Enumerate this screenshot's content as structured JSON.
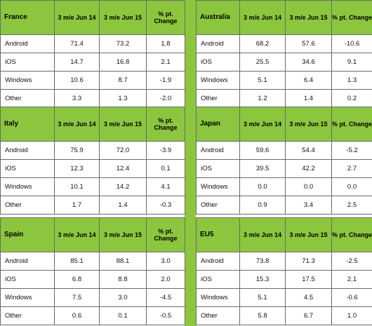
{
  "columns": [
    "3 m/e Jun 14",
    "3 m/e Jun 15",
    "% pt. Change"
  ],
  "regions": [
    {
      "name": "France",
      "rows": [
        {
          "os": "Android",
          "jun14": "71.4",
          "jun15": "73.2",
          "change": "1.8"
        },
        {
          "os": "iOS",
          "jun14": "14.7",
          "jun15": "16.8",
          "change": "2.1"
        },
        {
          "os": "Windows",
          "jun14": "10.6",
          "jun15": "8.7",
          "change": "-1.9"
        },
        {
          "os": "Other",
          "jun14": "3.3",
          "jun15": "1.3",
          "change": "-2.0"
        }
      ]
    },
    {
      "name": "Australia",
      "rows": [
        {
          "os": "Android",
          "jun14": "68.2",
          "jun15": "57.6",
          "change": "-10.6"
        },
        {
          "os": "iOS",
          "jun14": "25.5",
          "jun15": "34.6",
          "change": "9.1"
        },
        {
          "os": "Windows",
          "jun14": "5.1",
          "jun15": "6.4",
          "change": "1.3"
        },
        {
          "os": "Other",
          "jun14": "1.2",
          "jun15": "1.4",
          "change": "0.2"
        }
      ]
    },
    {
      "name": "Italy",
      "rows": [
        {
          "os": "Android",
          "jun14": "75.9",
          "jun15": "72.0",
          "change": "-3.9"
        },
        {
          "os": "iOS",
          "jun14": "12.3",
          "jun15": "12.4",
          "change": "0.1"
        },
        {
          "os": "Windows",
          "jun14": "10.1",
          "jun15": "14.2",
          "change": "4.1"
        },
        {
          "os": "Other",
          "jun14": "1.7",
          "jun15": "1.4",
          "change": "-0.3"
        }
      ]
    },
    {
      "name": "Japan",
      "rows": [
        {
          "os": "Android",
          "jun14": "59.6",
          "jun15": "54.4",
          "change": "-5.2"
        },
        {
          "os": "iOS",
          "jun14": "39.5",
          "jun15": "42.2",
          "change": "2.7"
        },
        {
          "os": "Windows",
          "jun14": "0.0",
          "jun15": "0.0",
          "change": "0.0"
        },
        {
          "os": "Other",
          "jun14": "0.9",
          "jun15": "3.4",
          "change": "2.5"
        }
      ]
    },
    {
      "name": "Spain",
      "rows": [
        {
          "os": "Android",
          "jun14": "85.1",
          "jun15": "88.1",
          "change": "3.0"
        },
        {
          "os": "iOS",
          "jun14": "6.8",
          "jun15": "8.8",
          "change": "2.0"
        },
        {
          "os": "Windows",
          "jun14": "7.5",
          "jun15": "3.0",
          "change": "-4.5"
        },
        {
          "os": "Other",
          "jun14": "0.6",
          "jun15": "0.1",
          "change": "-0.5"
        }
      ]
    },
    {
      "name": "EU5",
      "rows": [
        {
          "os": "Android",
          "jun14": "73.8",
          "jun15": "71.3",
          "change": "-2.5"
        },
        {
          "os": "iOS",
          "jun14": "15.3",
          "jun15": "17.5",
          "change": "2.1"
        },
        {
          "os": "Windows",
          "jun14": "5.1",
          "jun15": "4.5",
          "change": "-0.6"
        },
        {
          "os": "Other",
          "jun14": "5.8",
          "jun15": "6.7",
          "change": "1.0"
        }
      ]
    }
  ]
}
